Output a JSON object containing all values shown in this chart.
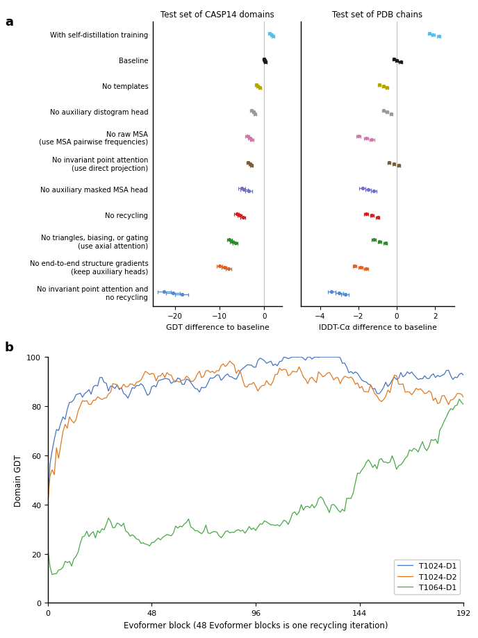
{
  "panel_a_labels": [
    "With self-distillation training",
    "Baseline",
    "No templates",
    "No auxiliary distogram head",
    "No raw MSA\n(use MSA pairwise frequencies)",
    "No invariant point attention\n(use direct projection)",
    "No auxiliary masked MSA head",
    "No recycling",
    "No triangles, biasing, or gating\n(use axial attention)",
    "No end-to-end structure gradients\n(keep auxiliary heads)",
    "No invariant point attention and\nno recycling"
  ],
  "colors": [
    "#5bbee8",
    "#1a1a1a",
    "#b5a300",
    "#9a9a9a",
    "#d475aa",
    "#7a5c3a",
    "#7070cc",
    "#cc2020",
    "#2a8a2a",
    "#e06020",
    "#5588cc"
  ],
  "gdt_points": [
    [
      [
        1.2,
        0.06
      ],
      [
        1.6,
        0.0
      ],
      [
        2.0,
        -0.06
      ]
    ],
    [
      [
        -0.1,
        0.06
      ],
      [
        0.1,
        0.0
      ],
      [
        0.3,
        -0.06
      ]
    ],
    [
      [
        -1.8,
        0.06
      ],
      [
        -1.4,
        0.0
      ],
      [
        -1.0,
        -0.06
      ]
    ],
    [
      [
        -2.8,
        0.06
      ],
      [
        -2.4,
        0.0
      ],
      [
        -2.1,
        -0.06
      ]
    ],
    [
      [
        -3.8,
        0.06
      ],
      [
        -3.2,
        0.0
      ],
      [
        -2.8,
        -0.06
      ]
    ],
    [
      [
        -3.6,
        0.06
      ],
      [
        -3.2,
        0.0
      ],
      [
        -2.8,
        -0.06
      ]
    ],
    [
      [
        -5.0,
        0.06
      ],
      [
        -4.5,
        0.0
      ],
      [
        -3.5,
        -0.06
      ]
    ],
    [
      [
        -6.2,
        0.06
      ],
      [
        -5.5,
        0.0
      ],
      [
        -4.8,
        -0.06
      ]
    ],
    [
      [
        -7.8,
        0.06
      ],
      [
        -7.2,
        0.0
      ],
      [
        -6.5,
        -0.06
      ]
    ],
    [
      [
        -10.0,
        0.06
      ],
      [
        -9.0,
        0.0
      ],
      [
        -8.0,
        -0.06
      ]
    ],
    [
      [
        -22.5,
        0.06
      ],
      [
        -20.5,
        0.0
      ],
      [
        -18.5,
        -0.06
      ]
    ]
  ],
  "gdt_xerr": [
    [
      [
        0.3,
        0.3
      ],
      [
        0.3,
        0.3
      ],
      [
        0.3,
        0.3
      ]
    ],
    [
      [
        0.3,
        0.3
      ],
      [
        0.3,
        0.3
      ],
      [
        0.3,
        0.3
      ]
    ],
    [
      [
        0.3,
        0.3
      ],
      [
        0.3,
        0.3
      ],
      [
        0.3,
        0.3
      ]
    ],
    [
      [
        0.3,
        0.3
      ],
      [
        0.3,
        0.3
      ],
      [
        0.3,
        0.3
      ]
    ],
    [
      [
        0.4,
        0.4
      ],
      [
        0.4,
        0.4
      ],
      [
        0.4,
        0.4
      ]
    ],
    [
      [
        0.3,
        0.3
      ],
      [
        0.3,
        0.3
      ],
      [
        0.3,
        0.3
      ]
    ],
    [
      [
        0.8,
        0.8
      ],
      [
        0.8,
        0.8
      ],
      [
        0.8,
        0.8
      ]
    ],
    [
      [
        0.5,
        0.5
      ],
      [
        0.5,
        0.5
      ],
      [
        0.5,
        0.5
      ]
    ],
    [
      [
        0.5,
        0.5
      ],
      [
        0.5,
        0.5
      ],
      [
        0.5,
        0.5
      ]
    ],
    [
      [
        0.6,
        0.6
      ],
      [
        0.6,
        0.6
      ],
      [
        0.6,
        0.6
      ]
    ],
    [
      [
        1.5,
        1.5
      ],
      [
        1.5,
        1.5
      ],
      [
        1.5,
        1.5
      ]
    ]
  ],
  "iddt_points": [
    [
      [
        1.7,
        0.06
      ],
      [
        1.9,
        0.0
      ],
      [
        2.2,
        -0.06
      ]
    ],
    [
      [
        -0.15,
        0.06
      ],
      [
        0.0,
        0.0
      ],
      [
        0.2,
        -0.06
      ]
    ],
    [
      [
        -0.9,
        0.06
      ],
      [
        -0.7,
        0.0
      ],
      [
        -0.5,
        -0.06
      ]
    ],
    [
      [
        -0.7,
        0.06
      ],
      [
        -0.5,
        0.0
      ],
      [
        -0.3,
        -0.06
      ]
    ],
    [
      [
        -2.0,
        0.06
      ],
      [
        -1.6,
        0.0
      ],
      [
        -1.3,
        -0.06
      ]
    ],
    [
      [
        -0.4,
        0.06
      ],
      [
        -0.15,
        0.0
      ],
      [
        0.1,
        -0.06
      ]
    ],
    [
      [
        -1.8,
        0.06
      ],
      [
        -1.5,
        0.0
      ],
      [
        -1.2,
        -0.06
      ]
    ],
    [
      [
        -1.6,
        0.06
      ],
      [
        -1.3,
        0.0
      ],
      [
        -1.0,
        -0.06
      ]
    ],
    [
      [
        -1.2,
        0.06
      ],
      [
        -0.9,
        0.0
      ],
      [
        -0.6,
        -0.06
      ]
    ],
    [
      [
        -2.2,
        0.06
      ],
      [
        -1.9,
        0.0
      ],
      [
        -1.6,
        -0.06
      ]
    ],
    [
      [
        -3.4,
        0.06
      ],
      [
        -3.0,
        0.0
      ],
      [
        -2.7,
        -0.06
      ]
    ]
  ],
  "iddt_xerr": [
    [
      [
        0.08,
        0.08
      ],
      [
        0.08,
        0.08
      ],
      [
        0.08,
        0.08
      ]
    ],
    [
      [
        0.08,
        0.08
      ],
      [
        0.08,
        0.08
      ],
      [
        0.08,
        0.08
      ]
    ],
    [
      [
        0.08,
        0.08
      ],
      [
        0.08,
        0.08
      ],
      [
        0.08,
        0.08
      ]
    ],
    [
      [
        0.08,
        0.08
      ],
      [
        0.08,
        0.08
      ],
      [
        0.08,
        0.08
      ]
    ],
    [
      [
        0.12,
        0.12
      ],
      [
        0.12,
        0.12
      ],
      [
        0.12,
        0.12
      ]
    ],
    [
      [
        0.08,
        0.08
      ],
      [
        0.08,
        0.08
      ],
      [
        0.08,
        0.08
      ]
    ],
    [
      [
        0.15,
        0.15
      ],
      [
        0.15,
        0.15
      ],
      [
        0.15,
        0.15
      ]
    ],
    [
      [
        0.1,
        0.1
      ],
      [
        0.1,
        0.1
      ],
      [
        0.1,
        0.1
      ]
    ],
    [
      [
        0.1,
        0.1
      ],
      [
        0.1,
        0.1
      ],
      [
        0.1,
        0.1
      ]
    ],
    [
      [
        0.1,
        0.1
      ],
      [
        0.1,
        0.1
      ],
      [
        0.1,
        0.1
      ]
    ],
    [
      [
        0.2,
        0.2
      ],
      [
        0.2,
        0.2
      ],
      [
        0.2,
        0.2
      ]
    ]
  ],
  "panel_b": {
    "t1024_d1_color": "#4472c4",
    "t1024_d2_color": "#e07820",
    "t1064_d1_color": "#44aa44",
    "xlabel": "Evoformer block (48 Evoformer blocks is one recycling iteration)",
    "ylabel": "Domain GDT",
    "xticks": [
      0,
      48,
      96,
      144,
      192
    ],
    "yticks": [
      0,
      20,
      40,
      60,
      80,
      100
    ]
  }
}
